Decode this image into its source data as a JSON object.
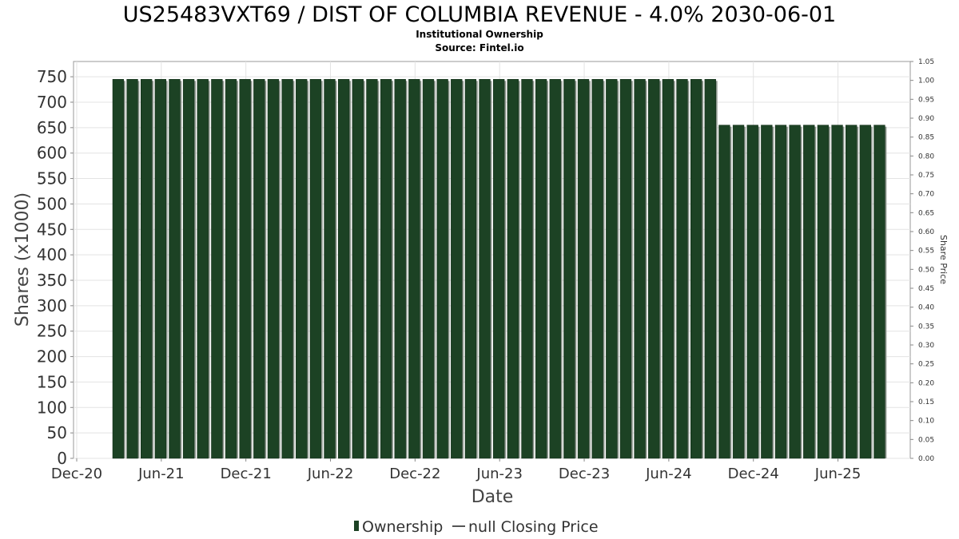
{
  "chart_data": {
    "type": "bar",
    "title": "US25483VXT69 / DIST OF COLUMBIA REVENUE - 4.0% 2030-06-01",
    "subtitle": "Institutional Ownership",
    "source": "Source: Fintel.io",
    "xlabel": "Date",
    "ylabel": "Shares (x1000)",
    "y2label": "Share Price",
    "ylim": [
      0,
      780
    ],
    "y2lim": [
      0,
      1.05
    ],
    "yticks": [
      "0",
      "50",
      "100",
      "150",
      "200",
      "250",
      "300",
      "350",
      "400",
      "450",
      "500",
      "550",
      "600",
      "650",
      "700",
      "750"
    ],
    "y2ticks": [
      "0.00",
      "0.05",
      "0.10",
      "0.15",
      "0.20",
      "0.25",
      "0.30",
      "0.35",
      "0.40",
      "0.45",
      "0.50",
      "0.55",
      "0.60",
      "0.65",
      "0.70",
      "0.75",
      "0.80",
      "0.85",
      "0.90",
      "0.95",
      "1.00",
      "1.05"
    ],
    "xticks": [
      "Dec-20",
      "Jun-21",
      "Dec-21",
      "Jun-22",
      "Dec-22",
      "Jun-23",
      "Dec-23",
      "Jun-24",
      "Dec-24",
      "Jun-25"
    ],
    "series": [
      {
        "name": "Ownership",
        "color": "#1c4224",
        "values": [
          745,
          745,
          745,
          745,
          745,
          745,
          745,
          745,
          745,
          745,
          745,
          745,
          745,
          745,
          745,
          745,
          745,
          745,
          745,
          745,
          745,
          745,
          745,
          745,
          745,
          745,
          745,
          745,
          745,
          745,
          745,
          745,
          745,
          745,
          745,
          745,
          745,
          745,
          745,
          745,
          745,
          745,
          745,
          655,
          655,
          655,
          655,
          655,
          655,
          655,
          655,
          655,
          655,
          655,
          655
        ]
      }
    ],
    "legend": {
      "position": "bottom-center",
      "items": [
        {
          "label": "Ownership",
          "color": "#1c4224"
        },
        {
          "label": "null Closing Price",
          "color": "#555555"
        }
      ]
    }
  }
}
